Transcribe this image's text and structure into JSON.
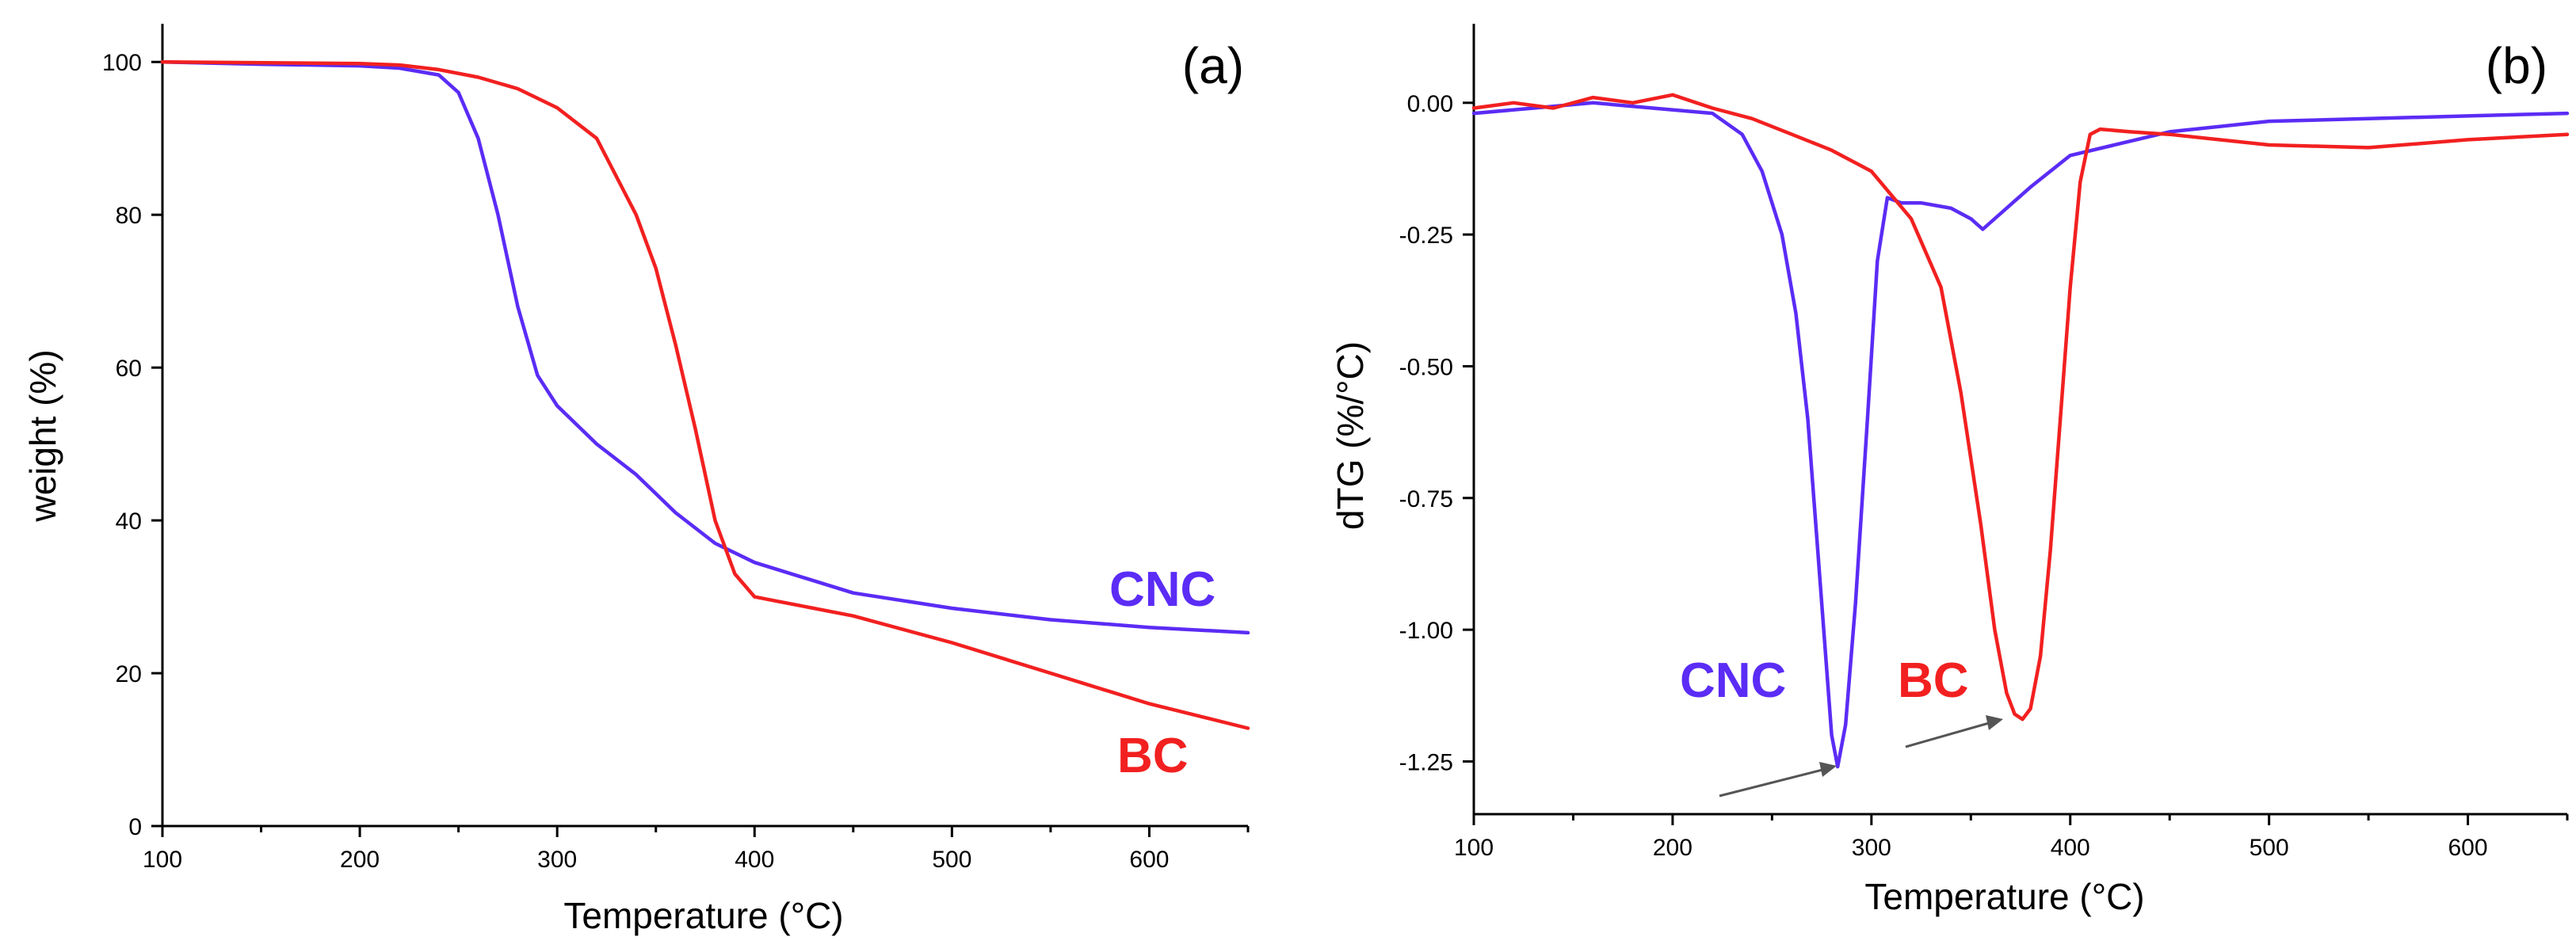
{
  "colors": {
    "cnc": "#5b2cf5",
    "bc": "#f22020"
  },
  "chart_data": [
    {
      "type": "line",
      "panel_label": "(a)",
      "xlabel": "Temperature (°C)",
      "ylabel": "weight (%)",
      "xlim": [
        100,
        650
      ],
      "ylim": [
        0,
        105
      ],
      "xticks": [
        100,
        200,
        300,
        400,
        500,
        600
      ],
      "yticks": [
        0,
        20,
        40,
        60,
        80,
        100
      ],
      "xtick_labels": [
        "100",
        "200",
        "300",
        "400",
        "500",
        "600"
      ],
      "ytick_labels": [
        "0",
        "20",
        "40",
        "60",
        "80",
        "100"
      ],
      "series": [
        {
          "name": "CNC",
          "x": [
            100,
            150,
            200,
            220,
            240,
            250,
            260,
            270,
            280,
            290,
            300,
            320,
            340,
            360,
            380,
            400,
            450,
            500,
            550,
            600,
            650
          ],
          "y": [
            100,
            99.7,
            99.5,
            99.2,
            98.3,
            96,
            90,
            80,
            68,
            59,
            55,
            50,
            46,
            41,
            37,
            34.5,
            30.5,
            28.5,
            27,
            26,
            25.3
          ]
        },
        {
          "name": "BC",
          "x": [
            100,
            200,
            220,
            240,
            260,
            280,
            300,
            320,
            340,
            350,
            360,
            370,
            380,
            390,
            400,
            410,
            450,
            500,
            550,
            600,
            650
          ],
          "y": [
            100,
            99.8,
            99.6,
            99,
            98,
            96.5,
            94,
            90,
            80,
            73,
            63,
            52,
            40,
            33,
            30,
            29.5,
            27.5,
            24,
            20,
            16,
            12.8
          ]
        }
      ],
      "annotations": [
        "CNC",
        "BC"
      ]
    },
    {
      "type": "line",
      "panel_label": "(b)",
      "xlabel": "Temperature (°C)",
      "ylabel": "dTG (%/°C)",
      "xlim": [
        100,
        650
      ],
      "ylim": [
        -1.35,
        0.15
      ],
      "xticks": [
        100,
        200,
        300,
        400,
        500,
        600
      ],
      "yticks": [
        0,
        -0.25,
        -0.5,
        -0.75,
        -1.0,
        -1.25
      ],
      "xtick_labels": [
        "100",
        "200",
        "300",
        "400",
        "500",
        "600"
      ],
      "ytick_labels": [
        "0.00",
        "-0.25",
        "-0.50",
        "-0.75",
        "-1.00",
        "-1.25"
      ],
      "series": [
        {
          "name": "CNC",
          "x": [
            100,
            130,
            160,
            190,
            220,
            235,
            245,
            255,
            262,
            268,
            273,
            277,
            280,
            283,
            287,
            292,
            298,
            303,
            308,
            315,
            325,
            340,
            350,
            356,
            365,
            380,
            400,
            450,
            500,
            550,
            600,
            650
          ],
          "y": [
            -0.02,
            -0.01,
            0.0,
            -0.01,
            -0.02,
            -0.06,
            -0.13,
            -0.25,
            -0.4,
            -0.6,
            -0.85,
            -1.05,
            -1.2,
            -1.26,
            -1.18,
            -0.95,
            -0.6,
            -0.3,
            -0.18,
            -0.19,
            -0.19,
            -0.2,
            -0.22,
            -0.24,
            -0.21,
            -0.16,
            -0.1,
            -0.055,
            -0.035,
            -0.03,
            -0.025,
            -0.02
          ]
        },
        {
          "name": "BC",
          "x": [
            100,
            120,
            140,
            160,
            180,
            200,
            220,
            240,
            260,
            280,
            300,
            320,
            335,
            345,
            355,
            362,
            368,
            372,
            376,
            380,
            385,
            390,
            395,
            400,
            405,
            410,
            415,
            430,
            450,
            500,
            550,
            600,
            650
          ],
          "y": [
            -0.01,
            0.0,
            -0.01,
            0.01,
            0.0,
            0.015,
            -0.01,
            -0.03,
            -0.06,
            -0.09,
            -0.13,
            -0.22,
            -0.35,
            -0.55,
            -0.8,
            -1.0,
            -1.12,
            -1.16,
            -1.17,
            -1.15,
            -1.05,
            -0.85,
            -0.6,
            -0.35,
            -0.15,
            -0.06,
            -0.05,
            -0.055,
            -0.06,
            -0.08,
            -0.085,
            -0.07,
            -0.06
          ]
        }
      ],
      "annotations": [
        "CNC",
        "BC"
      ]
    }
  ]
}
